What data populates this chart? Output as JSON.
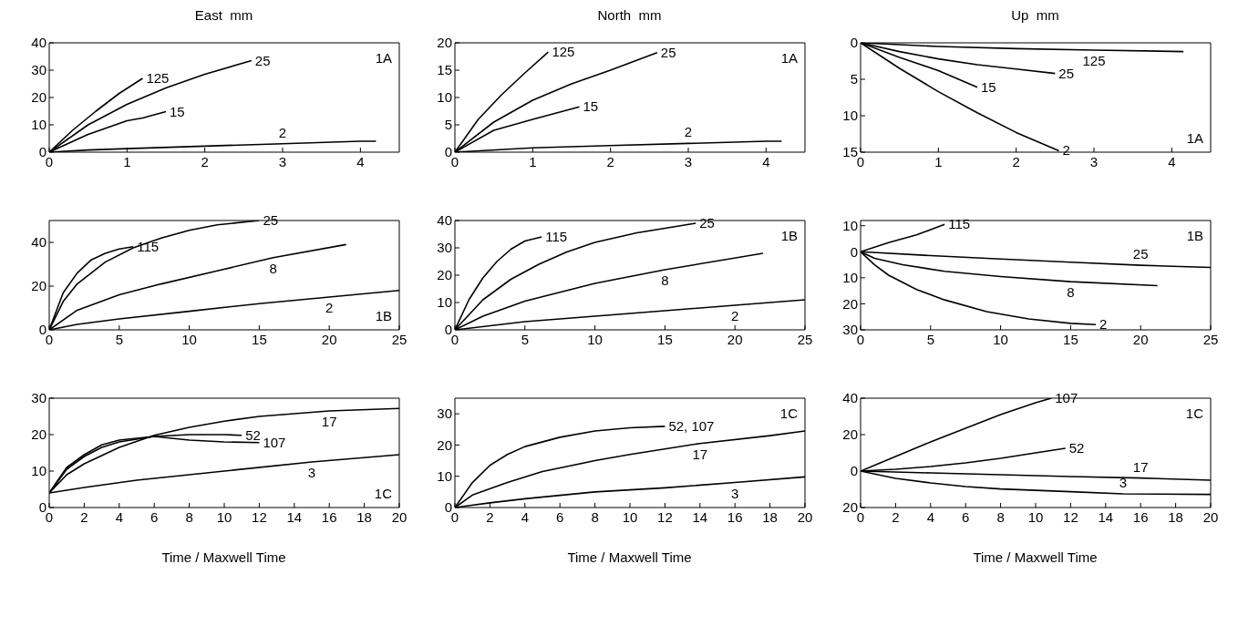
{
  "chart_data": [
    {
      "type": "line",
      "title": "East  mm",
      "annotations": [
        "1A"
      ],
      "xlim": [
        0,
        4.5
      ],
      "xticks": [
        0,
        1,
        2,
        3,
        4
      ],
      "ylim": [
        0,
        40
      ],
      "yticks": [
        0,
        10,
        20,
        30,
        40
      ],
      "series": [
        {
          "name": "125",
          "color": "#000000",
          "x": [
            0,
            0.3,
            0.6,
            0.9,
            1.2
          ],
          "values": [
            0,
            8,
            15,
            21.5,
            27
          ]
        },
        {
          "name": "25",
          "color": "#000000",
          "x": [
            0,
            0.5,
            1,
            1.5,
            2,
            2.6
          ],
          "values": [
            0,
            10,
            17.5,
            23.5,
            28.5,
            33.5
          ]
        },
        {
          "name": "15",
          "color": "#000000",
          "x": [
            0,
            0.5,
            1,
            1.2,
            1.5
          ],
          "values": [
            0,
            6.5,
            11.5,
            12.5,
            14.8
          ]
        },
        {
          "name": "2",
          "color": "#000000",
          "x": [
            0,
            0.5,
            1,
            2,
            3,
            4,
            4.2
          ],
          "values": [
            0,
            0.8,
            1.3,
            2.2,
            3.1,
            4,
            4
          ]
        }
      ]
    },
    {
      "type": "line",
      "title": "North  mm",
      "annotations": [
        "1A"
      ],
      "xlim": [
        0,
        4.5
      ],
      "xticks": [
        0,
        1,
        2,
        3,
        4
      ],
      "ylim": [
        0,
        20
      ],
      "yticks": [
        0,
        5,
        10,
        15,
        20
      ],
      "series": [
        {
          "name": "125",
          "color": "#000000",
          "x": [
            0,
            0.3,
            0.6,
            0.9,
            1.2
          ],
          "values": [
            0,
            6,
            10.5,
            14.5,
            18.3
          ]
        },
        {
          "name": "25",
          "color": "#000000",
          "x": [
            0,
            0.5,
            1,
            1.5,
            2,
            2.6
          ],
          "values": [
            0,
            5.5,
            9.5,
            12.5,
            15,
            18.2
          ]
        },
        {
          "name": "15",
          "color": "#000000",
          "x": [
            0,
            0.5,
            1,
            1.6
          ],
          "values": [
            0,
            4,
            6,
            8.3
          ]
        },
        {
          "name": "2",
          "color": "#000000",
          "x": [
            0,
            1,
            2,
            3,
            4,
            4.2
          ],
          "values": [
            0,
            0.8,
            1.2,
            1.6,
            2,
            2
          ]
        }
      ]
    },
    {
      "type": "line",
      "title": "Up  mm",
      "annotations": [
        "1A"
      ],
      "xlim": [
        0,
        4.5
      ],
      "xticks": [
        0,
        1,
        2,
        3,
        4
      ],
      "ylim": [
        15,
        0
      ],
      "yticks": [
        0,
        5,
        10,
        15
      ],
      "series": [
        {
          "name": "125",
          "color": "#000000",
          "x": [
            0,
            1,
            2,
            3,
            4.15
          ],
          "values": [
            0,
            0.5,
            0.8,
            1,
            1.2
          ]
        },
        {
          "name": "25",
          "color": "#000000",
          "x": [
            0,
            0.5,
            1,
            1.5,
            2,
            2.5
          ],
          "values": [
            0,
            1.2,
            2.2,
            3,
            3.6,
            4.2
          ]
        },
        {
          "name": "15",
          "color": "#000000",
          "x": [
            0,
            0.5,
            1,
            1.5
          ],
          "values": [
            0,
            2,
            3.8,
            6.1
          ]
        },
        {
          "name": "2",
          "color": "#000000",
          "x": [
            0,
            0.5,
            1,
            1.5,
            2,
            2.55
          ],
          "values": [
            0,
            3.5,
            6.7,
            9.6,
            12.3,
            14.8
          ]
        }
      ]
    },
    {
      "type": "line",
      "annotations": [
        "1B"
      ],
      "xlim": [
        0,
        25
      ],
      "xticks": [
        0,
        5,
        10,
        15,
        20,
        25
      ],
      "ylim": [
        0,
        50
      ],
      "yticks": [
        0,
        20,
        40
      ],
      "series": [
        {
          "name": "115",
          "color": "#000000",
          "x": [
            0,
            1,
            2,
            3,
            4,
            5,
            6
          ],
          "values": [
            0,
            17,
            26,
            32,
            35,
            37,
            38
          ]
        },
        {
          "name": "25",
          "color": "#000000",
          "x": [
            0,
            1,
            2,
            4,
            6,
            8,
            10,
            12,
            15
          ],
          "values": [
            0,
            13,
            21,
            31,
            37.5,
            42,
            45.5,
            48,
            50
          ]
        },
        {
          "name": "8",
          "color": "#000000",
          "x": [
            0,
            2,
            5,
            8,
            12,
            16,
            21.2
          ],
          "values": [
            0,
            9,
            16,
            21,
            27,
            33,
            39
          ]
        },
        {
          "name": "2",
          "color": "#000000",
          "x": [
            0,
            2,
            5,
            10,
            15,
            20,
            25
          ],
          "values": [
            0,
            2.5,
            5,
            8.5,
            12,
            15,
            18
          ]
        }
      ]
    },
    {
      "type": "line",
      "annotations": [
        "1B"
      ],
      "xlim": [
        0,
        25
      ],
      "xticks": [
        0,
        5,
        10,
        15,
        20,
        25
      ],
      "ylim": [
        0,
        40
      ],
      "yticks": [
        0,
        10,
        20,
        30,
        40
      ],
      "series": [
        {
          "name": "115",
          "color": "#000000",
          "x": [
            0,
            1,
            2,
            3,
            4,
            5,
            6.2
          ],
          "values": [
            0,
            11,
            19,
            25,
            29.5,
            32.5,
            34
          ]
        },
        {
          "name": "25",
          "color": "#000000",
          "x": [
            0,
            2,
            4,
            6,
            8,
            10,
            13,
            17.2
          ],
          "values": [
            0,
            11,
            18.5,
            24,
            28.5,
            32,
            35.5,
            39
          ]
        },
        {
          "name": "8",
          "color": "#000000",
          "x": [
            0,
            2,
            5,
            10,
            15,
            22
          ],
          "values": [
            0,
            5,
            10.5,
            17,
            22,
            28
          ]
        },
        {
          "name": "2",
          "color": "#000000",
          "x": [
            0,
            5,
            10,
            15,
            20,
            25
          ],
          "values": [
            0,
            3,
            5,
            7,
            9,
            11
          ]
        }
      ]
    },
    {
      "type": "line",
      "annotations": [
        "1B"
      ],
      "xlim": [
        0,
        25
      ],
      "xticks": [
        0,
        5,
        10,
        15,
        20,
        25
      ],
      "ylim": [
        30,
        -12
      ],
      "yticks": [
        {
          "value": -10,
          "label": "10"
        },
        0,
        10,
        20,
        30
      ],
      "series": [
        {
          "name": "115",
          "color": "#000000",
          "x": [
            0,
            2,
            4,
            6
          ],
          "values": [
            0,
            -3.5,
            -6.5,
            -10.5
          ]
        },
        {
          "name": "25",
          "color": "#000000",
          "x": [
            0,
            5,
            10,
            15,
            20,
            25
          ],
          "values": [
            0,
            1.5,
            2.8,
            4,
            5.2,
            6
          ]
        },
        {
          "name": "8",
          "color": "#000000",
          "x": [
            0,
            1,
            3,
            6,
            10,
            15,
            21.2
          ],
          "values": [
            0,
            2.5,
            5,
            7.5,
            9.5,
            11.5,
            13
          ]
        },
        {
          "name": "2",
          "color": "#000000",
          "x": [
            0,
            1,
            2,
            4,
            6,
            9,
            12,
            15,
            16.8
          ],
          "values": [
            0,
            5,
            9,
            14.5,
            18.5,
            23,
            25.8,
            27.5,
            28
          ]
        }
      ]
    },
    {
      "type": "line",
      "xlabel": "Time / Maxwell Time",
      "annotations": [
        "1C"
      ],
      "xlim": [
        0,
        20
      ],
      "xticks": [
        0,
        2,
        4,
        6,
        8,
        10,
        12,
        14,
        16,
        18,
        20
      ],
      "ylim": [
        0,
        30
      ],
      "yticks": [
        0,
        10,
        20,
        30
      ],
      "series": [
        {
          "name": "17",
          "color": "#000000",
          "x": [
            0,
            1,
            2,
            4,
            6,
            8,
            10,
            12,
            16,
            20
          ],
          "values": [
            4,
            9,
            12,
            16.5,
            19.8,
            22,
            23.7,
            25,
            26.5,
            27.2
          ]
        },
        {
          "name": "52",
          "color": "#000000",
          "x": [
            0,
            1,
            2,
            3,
            4,
            6,
            8,
            10,
            11
          ],
          "values": [
            4,
            10.5,
            14,
            16.5,
            18,
            19.5,
            20,
            20,
            19.8
          ]
        },
        {
          "name": "107",
          "color": "#000000",
          "x": [
            0,
            1,
            2,
            3,
            4,
            6,
            8,
            10,
            12
          ],
          "values": [
            4,
            11,
            14.5,
            17.2,
            18.5,
            19.5,
            18.5,
            18,
            17.8
          ]
        },
        {
          "name": "3",
          "color": "#000000",
          "x": [
            0,
            2,
            5,
            10,
            15,
            20
          ],
          "values": [
            4,
            5.5,
            7.5,
            10,
            12.5,
            14.5
          ]
        }
      ]
    },
    {
      "type": "line",
      "xlabel": "Time / Maxwell Time",
      "annotations": [
        "1C"
      ],
      "xlim": [
        0,
        20
      ],
      "xticks": [
        0,
        2,
        4,
        6,
        8,
        10,
        12,
        14,
        16,
        18,
        20
      ],
      "ylim": [
        0,
        35
      ],
      "yticks": [
        0,
        10,
        20,
        30
      ],
      "series": [
        {
          "name": "52, 107",
          "color": "#000000",
          "x": [
            0,
            1,
            2,
            3,
            4,
            6,
            8,
            10,
            12
          ],
          "values": [
            0,
            8,
            13.5,
            17,
            19.5,
            22.5,
            24.5,
            25.5,
            26
          ]
        },
        {
          "name": "17",
          "color": "#000000",
          "x": [
            0,
            1,
            3,
            5,
            8,
            10,
            14,
            18,
            20
          ],
          "values": [
            0,
            4,
            8,
            11.5,
            15,
            17,
            20.5,
            23,
            24.5
          ]
        },
        {
          "name": "3",
          "color": "#000000",
          "x": [
            0,
            2,
            4,
            8,
            12,
            16,
            20
          ],
          "values": [
            0,
            1.5,
            2.8,
            5,
            6.3,
            8,
            9.8
          ]
        }
      ]
    },
    {
      "type": "line",
      "xlabel": "Time / Maxwell Time",
      "annotations": [
        "1C"
      ],
      "xlim": [
        0,
        20
      ],
      "xticks": [
        0,
        2,
        4,
        6,
        8,
        10,
        12,
        14,
        16,
        18,
        20
      ],
      "ylim": [
        20,
        -40
      ],
      "yticks": [
        {
          "value": -40,
          "label": "40"
        },
        {
          "value": -20,
          "label": "20"
        },
        0,
        20
      ],
      "series": [
        {
          "name": "107",
          "color": "#000000",
          "x": [
            0,
            2,
            4,
            6,
            8,
            10,
            10.9
          ],
          "values": [
            0,
            -8,
            -16,
            -23.5,
            -31,
            -37.5,
            -40
          ]
        },
        {
          "name": "52",
          "color": "#000000",
          "x": [
            0,
            2,
            4,
            6,
            8,
            10,
            11.7
          ],
          "values": [
            0,
            -1,
            -2.5,
            -4.5,
            -7,
            -10,
            -12.5
          ]
        },
        {
          "name": "17",
          "color": "#000000",
          "x": [
            0,
            4,
            8,
            12,
            16,
            20
          ],
          "values": [
            0,
            1,
            2,
            3,
            3.8,
            5
          ]
        },
        {
          "name": "3",
          "color": "#000000",
          "x": [
            0,
            2,
            4,
            6,
            8,
            12,
            15,
            20
          ],
          "values": [
            0,
            4,
            6.5,
            8.5,
            9.8,
            11.3,
            12.5,
            12.8
          ]
        }
      ]
    }
  ]
}
